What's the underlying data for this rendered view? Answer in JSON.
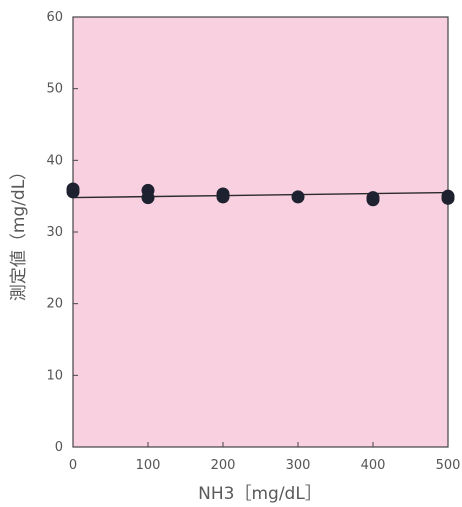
{
  "chart_data": {
    "type": "scatter",
    "title": "",
    "xlabel": "NH3［mg/dL］",
    "ylabel": "測定値（mg/dL）",
    "xlim": [
      0,
      500
    ],
    "ylim": [
      0,
      60
    ],
    "x_ticks": [
      0,
      100,
      200,
      300,
      400,
      500
    ],
    "y_ticks": [
      0,
      10,
      20,
      30,
      40,
      50,
      60
    ],
    "grid": false,
    "legend": "none",
    "colors": {
      "plot_background": "#f8d0df",
      "marker": "#1e2130",
      "trendline": "#2b2b2b",
      "axis": "#444444"
    },
    "series": [
      {
        "x": [
          0,
          0,
          100,
          100,
          200,
          200,
          300,
          400,
          400,
          500,
          500
        ],
        "y": [
          36.0,
          35.6,
          35.8,
          34.8,
          35.3,
          34.9,
          34.9,
          34.8,
          34.5,
          35.0,
          34.7
        ]
      }
    ],
    "trendline": {
      "x": [
        0,
        500
      ],
      "y": [
        34.8,
        35.5
      ]
    }
  }
}
